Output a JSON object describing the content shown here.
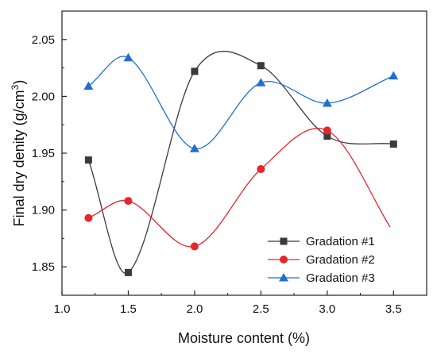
{
  "chart_data": {
    "type": "line",
    "smoothed": true,
    "xlabel": "Moisture content (%)",
    "ylabel_main": "Final dry denity (g/cm",
    "ylabel_sup": "3",
    "ylabel_end": ")",
    "xlim": [
      1.0,
      3.75
    ],
    "ylim": [
      1.825,
      2.075
    ],
    "x_ticks": [
      "1.0",
      "1.5",
      "2.0",
      "2.5",
      "3.0",
      "3.5"
    ],
    "y_ticks": [
      "1.85",
      "1.90",
      "1.95",
      "2.00",
      "2.05"
    ],
    "x": [
      1.2,
      1.5,
      2.0,
      2.5,
      3.0,
      3.5
    ],
    "series": [
      {
        "name": "Gradation #1",
        "color": "#3a3a3a",
        "marker": "square",
        "values": [
          1.944,
          1.845,
          2.022,
          2.027,
          1.965,
          1.958
        ]
      },
      {
        "name": "Gradation #2",
        "color": "#e8252a",
        "marker": "circle",
        "values": [
          1.893,
          1.908,
          1.868,
          1.936,
          1.97,
          1.88
        ]
      },
      {
        "name": "Gradation #3",
        "color": "#1f6fd1",
        "marker": "triangle",
        "values": [
          2.009,
          2.034,
          1.954,
          2.012,
          1.994,
          2.018
        ]
      }
    ],
    "legend_position": "bottom-right",
    "grid": false
  }
}
